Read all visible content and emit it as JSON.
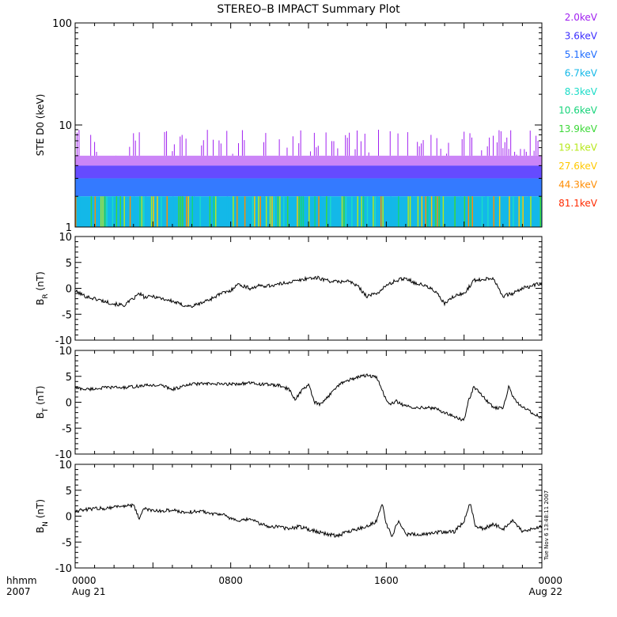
{
  "title": "STEREO–B IMPACT Summary Plot",
  "timestamp": "Tue Nov  6 13:48:11 2007",
  "colors": {
    "background": "#ffffff",
    "axes": "#000000",
    "trace": "#000000"
  },
  "x_axis": {
    "corner_labels": [
      "hhmm",
      "2007"
    ],
    "ticks": [
      {
        "hour": 0,
        "labels": [
          "0000",
          "Aug 21"
        ]
      },
      {
        "hour": 8,
        "labels": [
          "0800",
          ""
        ]
      },
      {
        "hour": 16,
        "labels": [
          "1600",
          ""
        ]
      },
      {
        "hour": 24,
        "labels": [
          "0000",
          "Aug 22"
        ]
      }
    ],
    "range_hours": [
      0,
      24
    ]
  },
  "chart_data": [
    {
      "id": "ste",
      "type": "heatmap",
      "ylabel": "STE D0 (keV)",
      "yscale": "log",
      "ylim": [
        1,
        100
      ],
      "yticks": [
        {
          "value": 1,
          "label": "1"
        },
        {
          "value": 10,
          "label": "10"
        },
        {
          "value": 100,
          "label": "100"
        }
      ],
      "grid": false,
      "legend": {
        "placement": "right",
        "entries": [
          {
            "label": "2.0keV",
            "color": "#a020f0"
          },
          {
            "label": "3.6keV",
            "color": "#3a2cff"
          },
          {
            "label": "5.1keV",
            "color": "#1e6cff"
          },
          {
            "label": "6.7keV",
            "color": "#13b8e8"
          },
          {
            "label": "8.3keV",
            "color": "#1bdcc8"
          },
          {
            "label": "10.6keV",
            "color": "#16d47a"
          },
          {
            "label": "13.9keV",
            "color": "#3cd838"
          },
          {
            "label": "19.1keV",
            "color": "#b6e81a"
          },
          {
            "label": "27.6keV",
            "color": "#ffc800"
          },
          {
            "label": "44.3keV",
            "color": "#ff8c00"
          },
          {
            "label": "81.1keV",
            "color": "#ff2a00"
          }
        ]
      },
      "bands": [
        {
          "from": 4,
          "to": 5,
          "color": "#a020f0",
          "coverage": 0.55
        },
        {
          "from": 3,
          "to": 4,
          "color": "#4a2cff",
          "coverage": 0.85
        },
        {
          "from": 2,
          "to": 3,
          "color": "#1e6cff",
          "coverage": 0.9
        },
        {
          "from": 1,
          "to": 2,
          "color": "#13b8e8",
          "coverage": 1.0
        }
      ],
      "spikes": {
        "top_range": [
          5,
          9
        ],
        "color": "#a020f0"
      }
    },
    {
      "id": "br",
      "type": "line",
      "ylabel_main": "B",
      "ylabel_sub": "R",
      "ylabel_unit": " (nT)",
      "ylim": [
        -10,
        10
      ],
      "yticks": [
        {
          "value": 10,
          "label": "10"
        },
        {
          "value": 5,
          "label": "5"
        },
        {
          "value": 0,
          "label": "0"
        },
        {
          "value": -5,
          "label": "-5"
        },
        {
          "value": -10,
          "label": "-10"
        }
      ],
      "grid": false,
      "noise": 0.35,
      "x": [
        0,
        0.5,
        1.0,
        1.5,
        2.0,
        2.5,
        3.0,
        3.3,
        3.6,
        4.0,
        4.5,
        5.0,
        5.5,
        6.0,
        6.5,
        7.0,
        7.5,
        8.0,
        8.3,
        8.6,
        9.0,
        9.5,
        10.0,
        10.5,
        11.0,
        11.5,
        12.0,
        12.5,
        13.0,
        13.5,
        14.0,
        14.5,
        15.0,
        15.5,
        16.0,
        16.5,
        17.0,
        17.5,
        18.0,
        18.5,
        19.0,
        19.5,
        20.0,
        20.5,
        21.0,
        21.5,
        22.0,
        22.5,
        23.0,
        23.5,
        24.0
      ],
      "y": [
        -0.5,
        -1.5,
        -2.0,
        -2.5,
        -3.0,
        -3.3,
        -2.0,
        -1.0,
        -1.8,
        -1.5,
        -2.0,
        -2.5,
        -3.2,
        -3.5,
        -2.8,
        -2.0,
        -1.0,
        -0.5,
        0.8,
        0.5,
        0.0,
        0.5,
        0.5,
        0.8,
        1.2,
        1.5,
        2.0,
        2.0,
        1.5,
        1.2,
        1.5,
        0.5,
        -1.5,
        -1.0,
        0.5,
        1.5,
        2.0,
        1.0,
        0.5,
        -0.5,
        -3.0,
        -1.5,
        -1.0,
        1.5,
        1.8,
        2.0,
        -1.5,
        -1.0,
        0.0,
        0.5,
        1.0
      ]
    },
    {
      "id": "bt",
      "type": "line",
      "ylabel_main": "B",
      "ylabel_sub": "T",
      "ylabel_unit": " (nT)",
      "ylim": [
        -10,
        10
      ],
      "yticks": [
        {
          "value": 10,
          "label": "10"
        },
        {
          "value": 5,
          "label": "5"
        },
        {
          "value": 0,
          "label": "0"
        },
        {
          "value": -5,
          "label": "-5"
        },
        {
          "value": -10,
          "label": "-10"
        }
      ],
      "grid": false,
      "noise": 0.3,
      "x": [
        0,
        0.5,
        1.0,
        1.5,
        2.0,
        2.5,
        3.0,
        3.5,
        4.0,
        4.5,
        5.0,
        5.5,
        6.0,
        6.5,
        7.0,
        7.5,
        8.0,
        8.5,
        9.0,
        9.5,
        10.0,
        10.5,
        11.0,
        11.3,
        11.6,
        12.0,
        12.3,
        12.6,
        13.0,
        13.3,
        13.6,
        14.0,
        14.5,
        15.0,
        15.5,
        16.0,
        16.2,
        16.5,
        17.0,
        17.5,
        18.0,
        18.5,
        19.0,
        19.5,
        20.0,
        20.2,
        20.5,
        21.0,
        21.5,
        22.0,
        22.3,
        22.6,
        23.0,
        23.5,
        24.0
      ],
      "y": [
        2.8,
        2.5,
        2.6,
        2.8,
        2.9,
        2.8,
        3.0,
        3.2,
        3.3,
        3.2,
        2.5,
        3.0,
        3.5,
        3.6,
        3.5,
        3.5,
        3.5,
        3.6,
        3.7,
        3.5,
        3.4,
        3.2,
        2.5,
        0.5,
        2.0,
        3.5,
        0.0,
        -0.5,
        1.0,
        2.5,
        3.5,
        4.2,
        4.8,
        5.2,
        4.8,
        0.5,
        -0.5,
        0.2,
        -0.8,
        -1.0,
        -1.0,
        -1.2,
        -2.0,
        -2.8,
        -3.5,
        0.0,
        3.0,
        1.0,
        -1.0,
        -1.2,
        3.0,
        0.5,
        -1.0,
        -2.0,
        -3.0
      ]
    },
    {
      "id": "bn",
      "type": "line",
      "ylabel_main": "B",
      "ylabel_sub": "N",
      "ylabel_unit": " (nT)",
      "ylim": [
        -10,
        10
      ],
      "yticks": [
        {
          "value": 10,
          "label": "10"
        },
        {
          "value": 5,
          "label": "5"
        },
        {
          "value": 0,
          "label": "0"
        },
        {
          "value": -5,
          "label": "-5"
        },
        {
          "value": -10,
          "label": "-10"
        }
      ],
      "grid": false,
      "noise": 0.35,
      "x": [
        0,
        0.5,
        1.0,
        1.5,
        2.0,
        2.5,
        3.0,
        3.3,
        3.5,
        4.0,
        4.5,
        5.0,
        5.5,
        6.0,
        6.5,
        7.0,
        7.5,
        8.0,
        8.5,
        9.0,
        9.5,
        10.0,
        10.5,
        11.0,
        11.5,
        12.0,
        12.5,
        13.0,
        13.5,
        14.0,
        14.5,
        15.0,
        15.5,
        15.8,
        16.0,
        16.3,
        16.6,
        17.0,
        17.5,
        18.0,
        18.5,
        19.0,
        19.5,
        20.0,
        20.3,
        20.6,
        21.0,
        21.5,
        22.0,
        22.5,
        23.0,
        23.5,
        24.0
      ],
      "y": [
        1.0,
        1.2,
        1.5,
        1.5,
        1.8,
        2.0,
        2.0,
        -0.5,
        1.5,
        1.0,
        1.0,
        1.2,
        0.8,
        0.8,
        1.0,
        0.5,
        0.5,
        -0.5,
        -1.0,
        -0.5,
        -1.5,
        -2.0,
        -2.0,
        -2.5,
        -2.0,
        -2.5,
        -3.0,
        -3.5,
        -3.8,
        -3.0,
        -2.5,
        -2.0,
        -1.0,
        2.5,
        -1.5,
        -4.0,
        -1.0,
        -3.5,
        -3.5,
        -3.5,
        -3.2,
        -3.0,
        -3.0,
        -1.0,
        2.5,
        -2.0,
        -2.5,
        -1.5,
        -2.5,
        -1.0,
        -3.0,
        -2.5,
        -2.0
      ]
    }
  ]
}
